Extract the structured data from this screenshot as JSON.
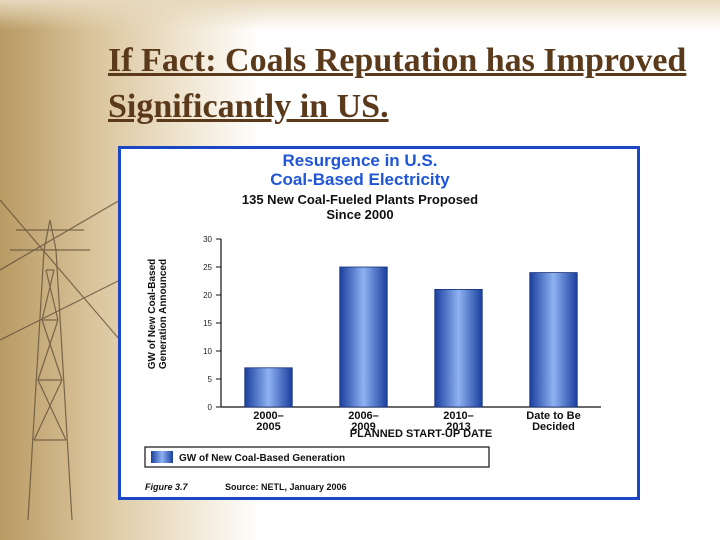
{
  "slide": {
    "title": "If Fact:  Coals Reputation has Improved Significantly in US."
  },
  "figure": {
    "caption_label": "Figure 3.7",
    "caption_source": "Source: NETL, January 2006"
  },
  "colors": {
    "bar": "#2f5ec8",
    "frame": "#1b46c4",
    "title_blue": "#1f56d8",
    "slide_title": "#5a3a1a"
  },
  "chart_data": {
    "type": "bar",
    "title": "Resurgence in U.S. Coal-Based Electricity",
    "title_lines": [
      "Resurgence in U.S.",
      "Coal-Based Electricity"
    ],
    "subtitle": "135 New Coal-Fueled Plants Proposed Since 2000",
    "subtitle_lines": [
      "135 New Coal-Fueled Plants Proposed",
      "Since 2000"
    ],
    "categories": [
      "2000–2005",
      "2006–2009",
      "2010–2013",
      "Date to Be Decided"
    ],
    "category_lines": [
      [
        "2000–",
        "2005"
      ],
      [
        "2006–",
        "2009"
      ],
      [
        "2010–",
        "2013"
      ],
      [
        "Date to Be",
        "Decided"
      ]
    ],
    "series": [
      {
        "name": "GW of New Coal-Based Generation",
        "values": [
          7,
          25,
          21,
          24
        ]
      }
    ],
    "xlabel": "PLANNED START-UP DATE",
    "ylabel": "GW of New Coal-Based Generation Announced",
    "ylabel_lines": [
      "GW of New Coal-Based",
      "Generation Announced"
    ],
    "ylim": [
      0,
      30
    ],
    "yticks": [
      0,
      5,
      10,
      15,
      20,
      25,
      30
    ],
    "grid": false,
    "legend_position": "bottom"
  }
}
